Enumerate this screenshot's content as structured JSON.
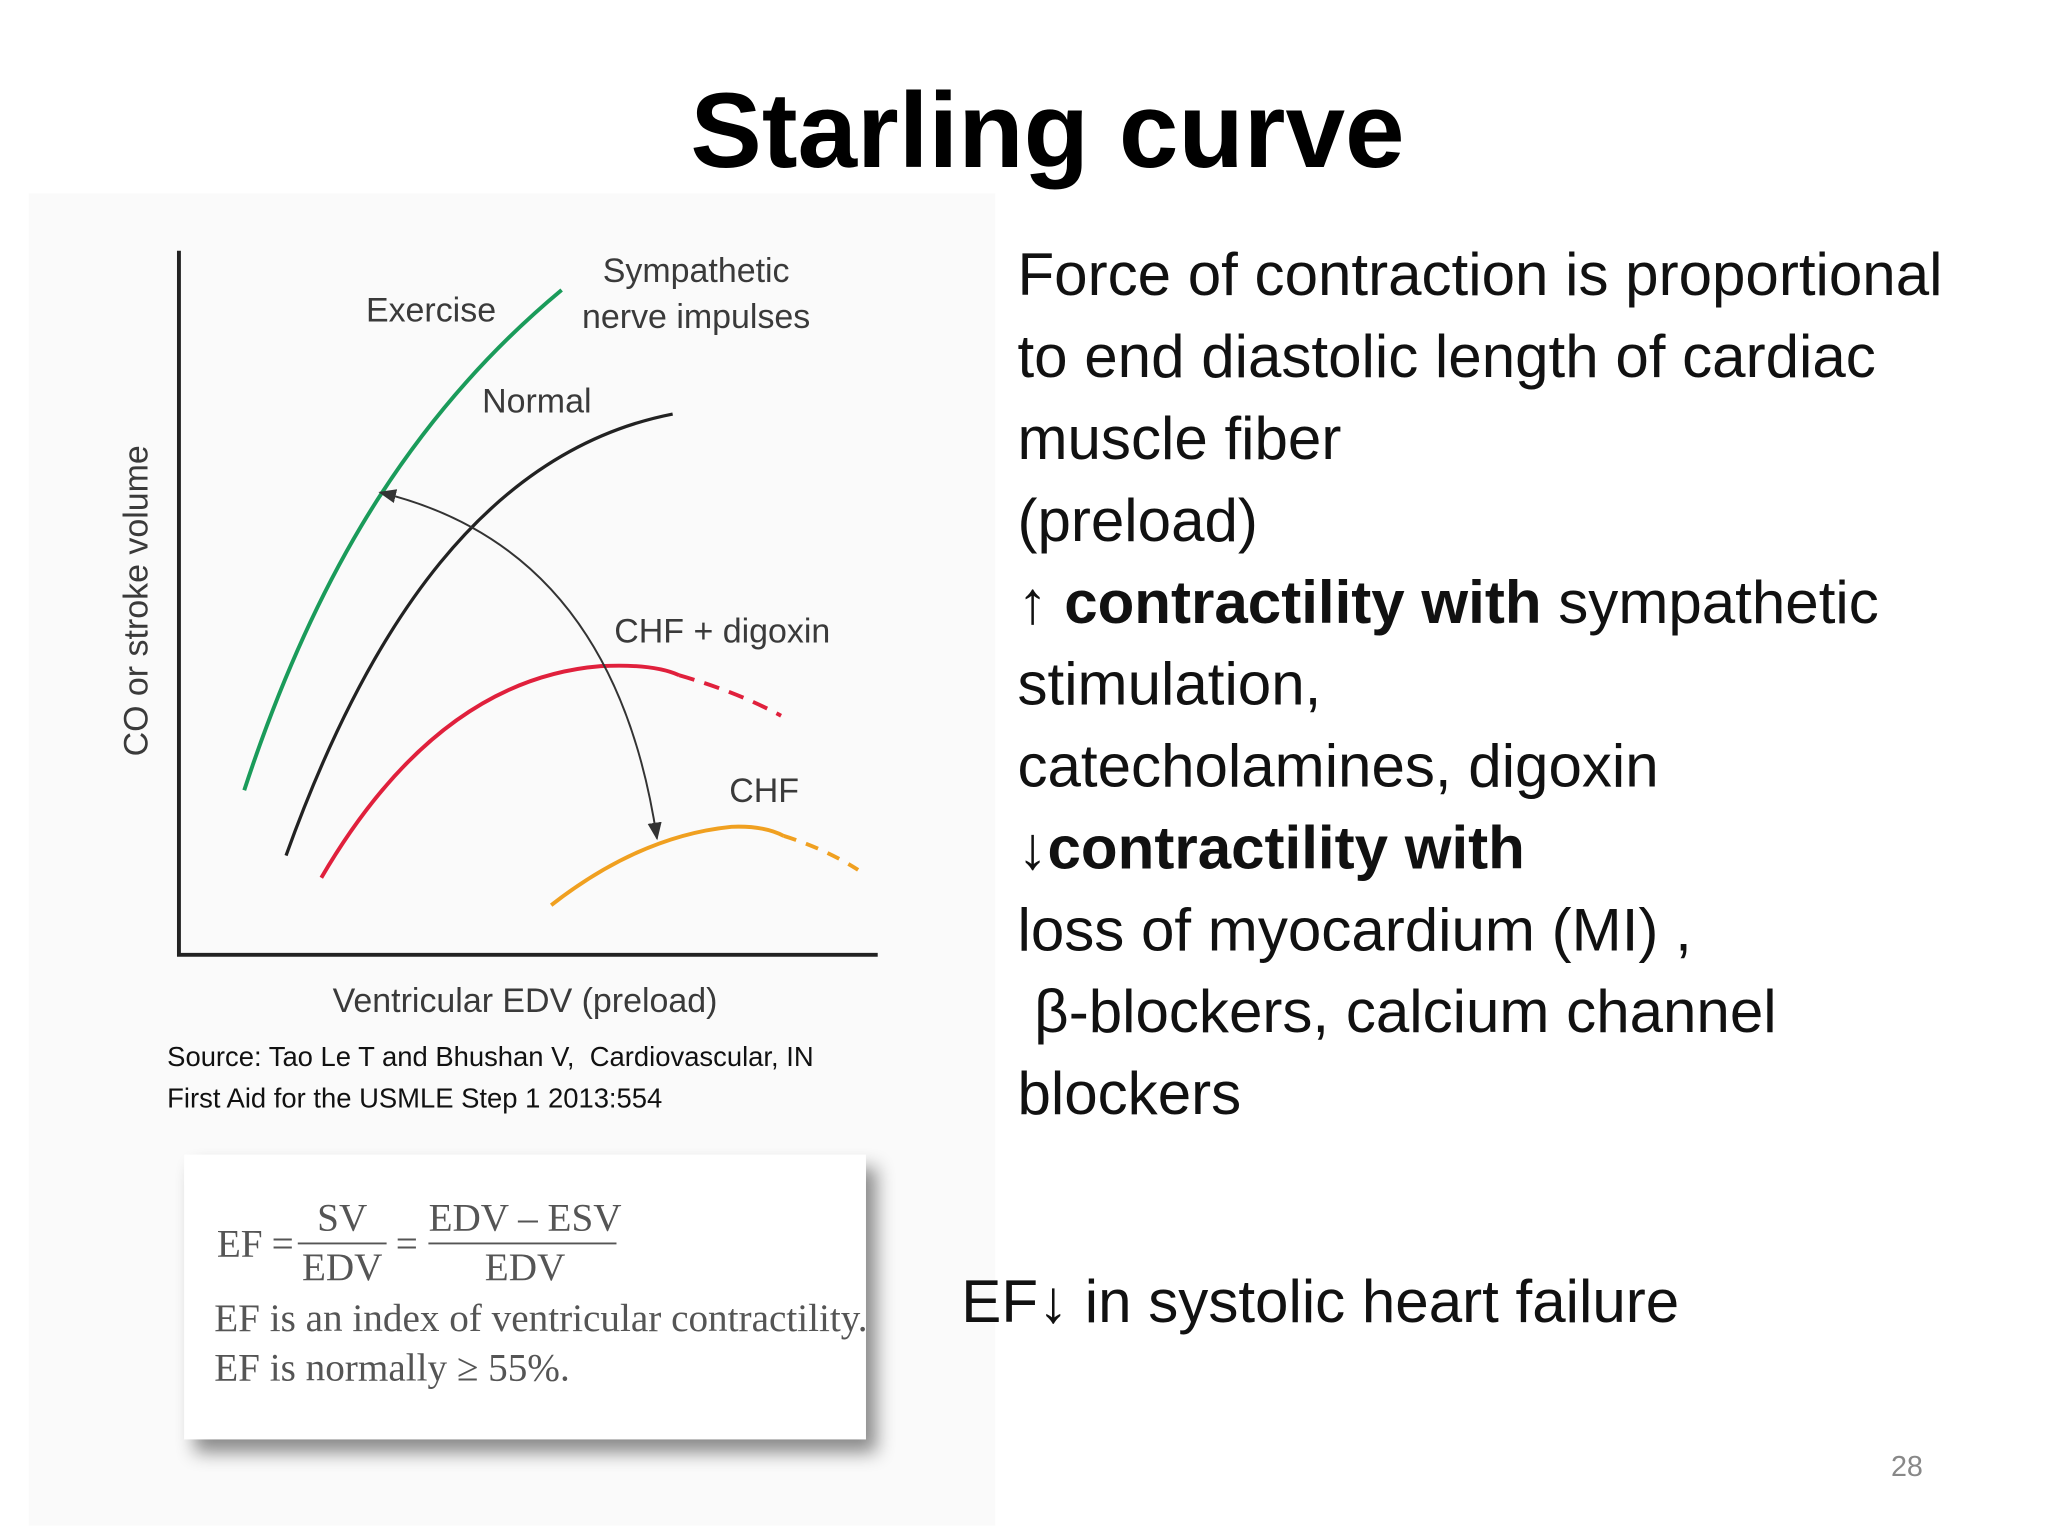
{
  "title": "Starling curve",
  "figure": {
    "y_axis_label": "CO or stroke volume",
    "x_axis_label": "Ventricular EDV (preload)",
    "curve_labels": [
      "Exercise",
      "Sympathetic",
      "nerve impulses",
      "Normal",
      "CHF + digoxin",
      "CHF"
    ],
    "source": [
      "Source: Tao Le T and Bhushan V,  Cardiovascular, IN",
      "First Aid for the USMLE Step 1 2013:554"
    ]
  },
  "body": [
    [
      {
        "text": "Force of contraction is proportional",
        "bold": false
      }
    ],
    [
      {
        "text": "to end diastolic length of cardiac",
        "bold": false
      }
    ],
    [
      {
        "text": "muscle fiber",
        "bold": false
      }
    ],
    [
      {
        "text": "(preload)",
        "bold": false
      }
    ],
    [
      {
        "text": "↑ contractility with",
        "bold": true
      },
      {
        "text": " sympathetic",
        "bold": false
      }
    ],
    [
      {
        "text": "stimulation,",
        "bold": false
      }
    ],
    [
      {
        "text": "catecholamines, digoxin",
        "bold": false
      }
    ],
    [
      {
        "text": "↓contractility with",
        "bold": true
      }
    ],
    [
      {
        "text": "loss of myocardium (MI) ,",
        "bold": false
      }
    ],
    [
      {
        "text": " β-blockers, calcium channel",
        "bold": false
      }
    ],
    [
      {
        "text": "blockers",
        "bold": false
      }
    ]
  ],
  "formula": {
    "lhs": "EF",
    "eq": "=",
    "num1": "SV",
    "den1": "EDV",
    "num2": "EDV – ESV",
    "den2": "EDV"
  },
  "formula_notes": [
    "EF is an index of ventricular contractility.",
    "EF is normally ≥ 55%."
  ],
  "note": "EF↓ in systolic heart failure",
  "page_number": "28"
}
